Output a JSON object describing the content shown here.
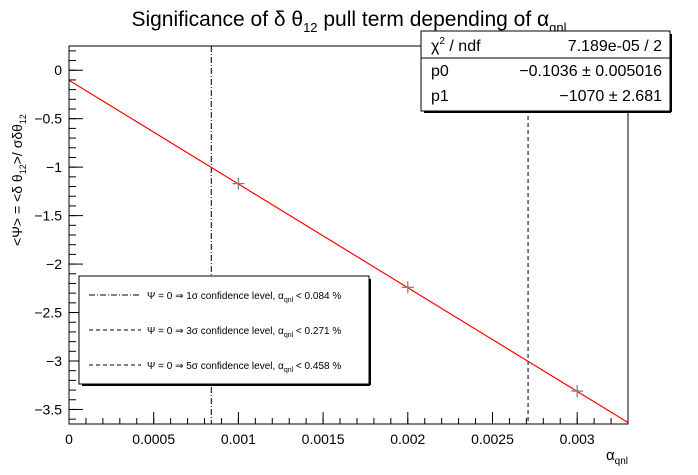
{
  "chart_data": {
    "type": "scatter",
    "title": "Significance of δ θ₁₂ pull term depending of α_qnl",
    "title_parts": {
      "main": "Significance of δ θ",
      "main_sub": "12",
      "middle": " pull term depending of α",
      "end_sub": "qnl"
    },
    "xlabel": "α_qnl",
    "xlabel_parts": {
      "main": "α",
      "sub": "qnl"
    },
    "ylabel": "<Ψ> = <δ θ₁₂>/ σδθ₁₂",
    "ylabel_parts": {
      "a": "<Ψ> = <δ θ",
      "a_sub": "12",
      "b": ">/ σδθ",
      "b_sub": "12"
    },
    "xlim": [
      0,
      0.0033
    ],
    "ylim": [
      -3.65,
      0.25
    ],
    "xticks": [
      0,
      0.0005,
      0.001,
      0.0015,
      0.002,
      0.0025,
      0.003
    ],
    "xtick_labels": [
      "0",
      "0.0005",
      "0.001",
      "0.0015",
      "0.002",
      "0.0025",
      "0.003"
    ],
    "yticks": [
      0,
      -0.5,
      -1,
      -1.5,
      -2,
      -2.5,
      -3,
      -3.5
    ],
    "ytick_labels": [
      "0",
      "−0.5",
      "−1",
      "−1.5",
      "−2",
      "−2.5",
      "−3",
      "−3.5"
    ],
    "grid": false,
    "series": [
      {
        "points": [
          {
            "x": 0.001,
            "y": -1.17
          },
          {
            "x": 0.002,
            "y": -2.24
          },
          {
            "x": 0.003,
            "y": -3.31
          }
        ],
        "color": "#808080",
        "marker": "plus"
      }
    ],
    "fit": {
      "p0": -0.1036,
      "p1": -1070,
      "x_range": [
        0,
        0.0033
      ],
      "color": "#ff0000"
    },
    "vlines": [
      {
        "x": 0.00084,
        "style": "dash-dot",
        "color": "#000000"
      },
      {
        "x": 0.00271,
        "style": "dashed",
        "color": "#000000"
      }
    ],
    "stats_box": {
      "placement": "top-right",
      "rows": [
        {
          "label": "χ² / ndf",
          "label_main": "χ",
          "label_sup": "2",
          "label_rest": " / ndf",
          "value": "7.189e-05 / 2"
        },
        {
          "label": "p0",
          "value": "−0.1036 ± 0.005016"
        },
        {
          "label": "p1",
          "value": "−1070 ± 2.681"
        }
      ]
    },
    "legend": {
      "placement": "bottom-left",
      "entries": [
        {
          "style": "dash-dot",
          "pre": "Ψ = 0 ⇒ 1σ confidence level, α",
          "sub": "qnl",
          "post": " < 0.084 %"
        },
        {
          "style": "dashed",
          "pre": "Ψ = 0 ⇒ 3σ confidence level, α",
          "sub": "qnl",
          "post": " < 0.271 %"
        },
        {
          "style": "dashed",
          "pre": "Ψ = 0 ⇒ 5σ confidence level, α",
          "sub": "qnl",
          "post": " < 0.458 %"
        }
      ]
    }
  }
}
